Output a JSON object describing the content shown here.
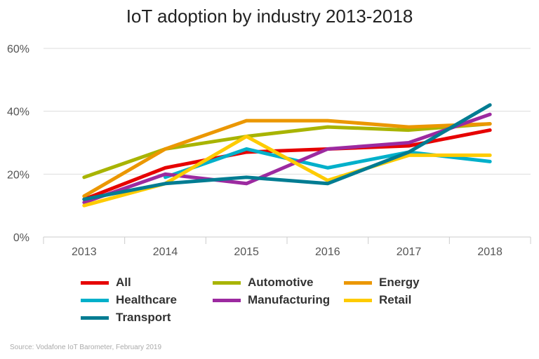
{
  "chart_data": {
    "type": "line",
    "title": "IoT adoption by industry 2013-2018",
    "xlabel": "",
    "ylabel": "",
    "x": [
      "2013",
      "2014",
      "2015",
      "2016",
      "2017",
      "2018"
    ],
    "ylim": [
      0,
      60
    ],
    "yticks": [
      "0%",
      "20%",
      "40%",
      "60%"
    ],
    "grid": true,
    "legend_position": "bottom",
    "series": [
      {
        "name": "All",
        "color": "#e60000",
        "values": [
          12,
          22,
          27,
          28,
          29,
          34
        ]
      },
      {
        "name": "Automotive",
        "color": "#a8b400",
        "values": [
          19,
          28,
          32,
          35,
          34,
          36
        ]
      },
      {
        "name": "Energy",
        "color": "#eb9700",
        "values": [
          13,
          28,
          37,
          37,
          35,
          36
        ]
      },
      {
        "name": "Healthcare",
        "color": "#00b0ca",
        "values": [
          null,
          19,
          28,
          22,
          27,
          24
        ]
      },
      {
        "name": "Manufacturing",
        "color": "#9c2aa0",
        "values": [
          11,
          20,
          17,
          28,
          30,
          39
        ]
      },
      {
        "name": "Retail",
        "color": "#fecb00",
        "values": [
          10,
          17,
          32,
          18,
          26,
          26
        ]
      },
      {
        "name": "Transport",
        "color": "#007c92",
        "values": [
          12,
          17,
          19,
          17,
          27,
          42
        ]
      }
    ]
  },
  "source": "Source: Vodafone IoT Barometer, February 2019"
}
